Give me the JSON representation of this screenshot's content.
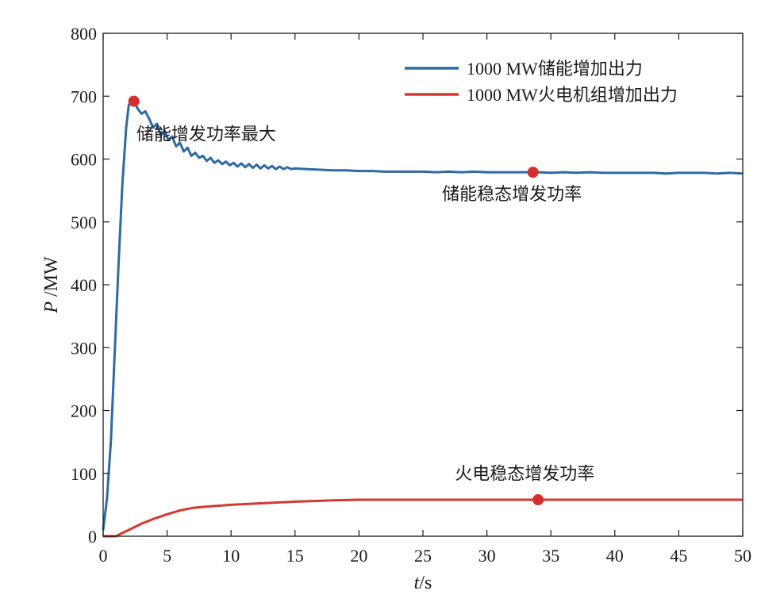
{
  "chart_data": {
    "type": "line",
    "xlabel_italic": "t",
    "xlabel_unit": "/s",
    "ylabel_italic": "P",
    "ylabel_unit": " /MW",
    "xlim": [
      0,
      50
    ],
    "ylim": [
      0,
      800
    ],
    "xticks": [
      0,
      5,
      10,
      15,
      20,
      25,
      30,
      35,
      40,
      45,
      50
    ],
    "yticks": [
      0,
      100,
      200,
      300,
      400,
      500,
      600,
      700,
      800
    ],
    "grid": false,
    "legend_position": "top-right",
    "series": [
      {
        "name": "1000 MW储能增加出力",
        "color": "#2f6aa3",
        "x": [
          0,
          0.3,
          0.6,
          0.9,
          1.2,
          1.5,
          1.8,
          2.0,
          2.2,
          2.4,
          2.7,
          3.0,
          3.3,
          3.6,
          3.9,
          4.2,
          4.5,
          4.8,
          5.1,
          5.4,
          5.7,
          6.0,
          6.3,
          6.6,
          6.9,
          7.2,
          7.5,
          7.8,
          8.1,
          8.4,
          8.7,
          9.0,
          9.3,
          9.6,
          9.9,
          10.2,
          10.5,
          10.8,
          11.1,
          11.4,
          11.7,
          12.0,
          12.3,
          12.6,
          12.9,
          13.2,
          13.5,
          13.8,
          14.1,
          14.4,
          14.7,
          15.0,
          16.0,
          17.0,
          18.0,
          19.0,
          20.0,
          21.0,
          22.0,
          23.0,
          24.0,
          25.0,
          26.0,
          27.0,
          28.0,
          29.0,
          30.0,
          31.0,
          32.0,
          33.0,
          34.0,
          35.0,
          36.0,
          37.0,
          38.0,
          39.0,
          40.0,
          41.0,
          42.0,
          43.0,
          44.0,
          45.0,
          46.0,
          47.0,
          48.0,
          49.0,
          50.0
        ],
        "y": [
          10,
          60,
          150,
          290,
          430,
          560,
          650,
          685,
          695,
          692,
          680,
          672,
          676,
          664,
          650,
          656,
          638,
          645,
          630,
          636,
          620,
          626,
          612,
          618,
          605,
          610,
          602,
          605,
          597,
          602,
          594,
          598,
          592,
          596,
          590,
          594,
          588,
          593,
          587,
          592,
          586,
          591,
          585,
          590,
          585,
          589,
          584,
          588,
          584,
          587,
          584,
          585,
          584,
          583,
          582,
          582,
          581,
          581,
          580,
          580,
          580,
          580,
          579,
          580,
          579,
          580,
          579,
          579,
          579,
          579,
          579,
          578,
          579,
          578,
          579,
          578,
          578,
          578,
          578,
          578,
          577,
          578,
          578,
          578,
          577,
          578,
          577
        ]
      },
      {
        "name": "1000 MW火电机组增加出力",
        "color": "#d03a32",
        "x": [
          0,
          0.5,
          1.0,
          1.5,
          2.0,
          3.0,
          4.0,
          5.0,
          6.0,
          7.0,
          8.0,
          10.0,
          12.0,
          15.0,
          18.0,
          20.0,
          25.0,
          30.0,
          35.0,
          40.0,
          45.0,
          50.0
        ],
        "y": [
          0,
          0,
          0,
          5,
          10,
          20,
          28,
          35,
          41,
          45,
          47,
          50,
          52,
          55,
          57,
          58,
          58,
          58,
          58,
          58,
          58,
          58
        ]
      }
    ],
    "markers": [
      {
        "x": 2.4,
        "y": 692,
        "color": "#d32f2f"
      },
      {
        "x": 33.6,
        "y": 579,
        "color": "#d32f2f"
      },
      {
        "x": 34.0,
        "y": 58,
        "color": "#d32f2f"
      }
    ],
    "annotations": [
      {
        "text": "储能增发功率最大",
        "x": 2.6,
        "y": 630
      },
      {
        "text": "储能稳态增发功率",
        "x": 26.5,
        "y": 535
      },
      {
        "text": "火电稳态增发功率",
        "x": 27.5,
        "y": 90
      }
    ]
  }
}
